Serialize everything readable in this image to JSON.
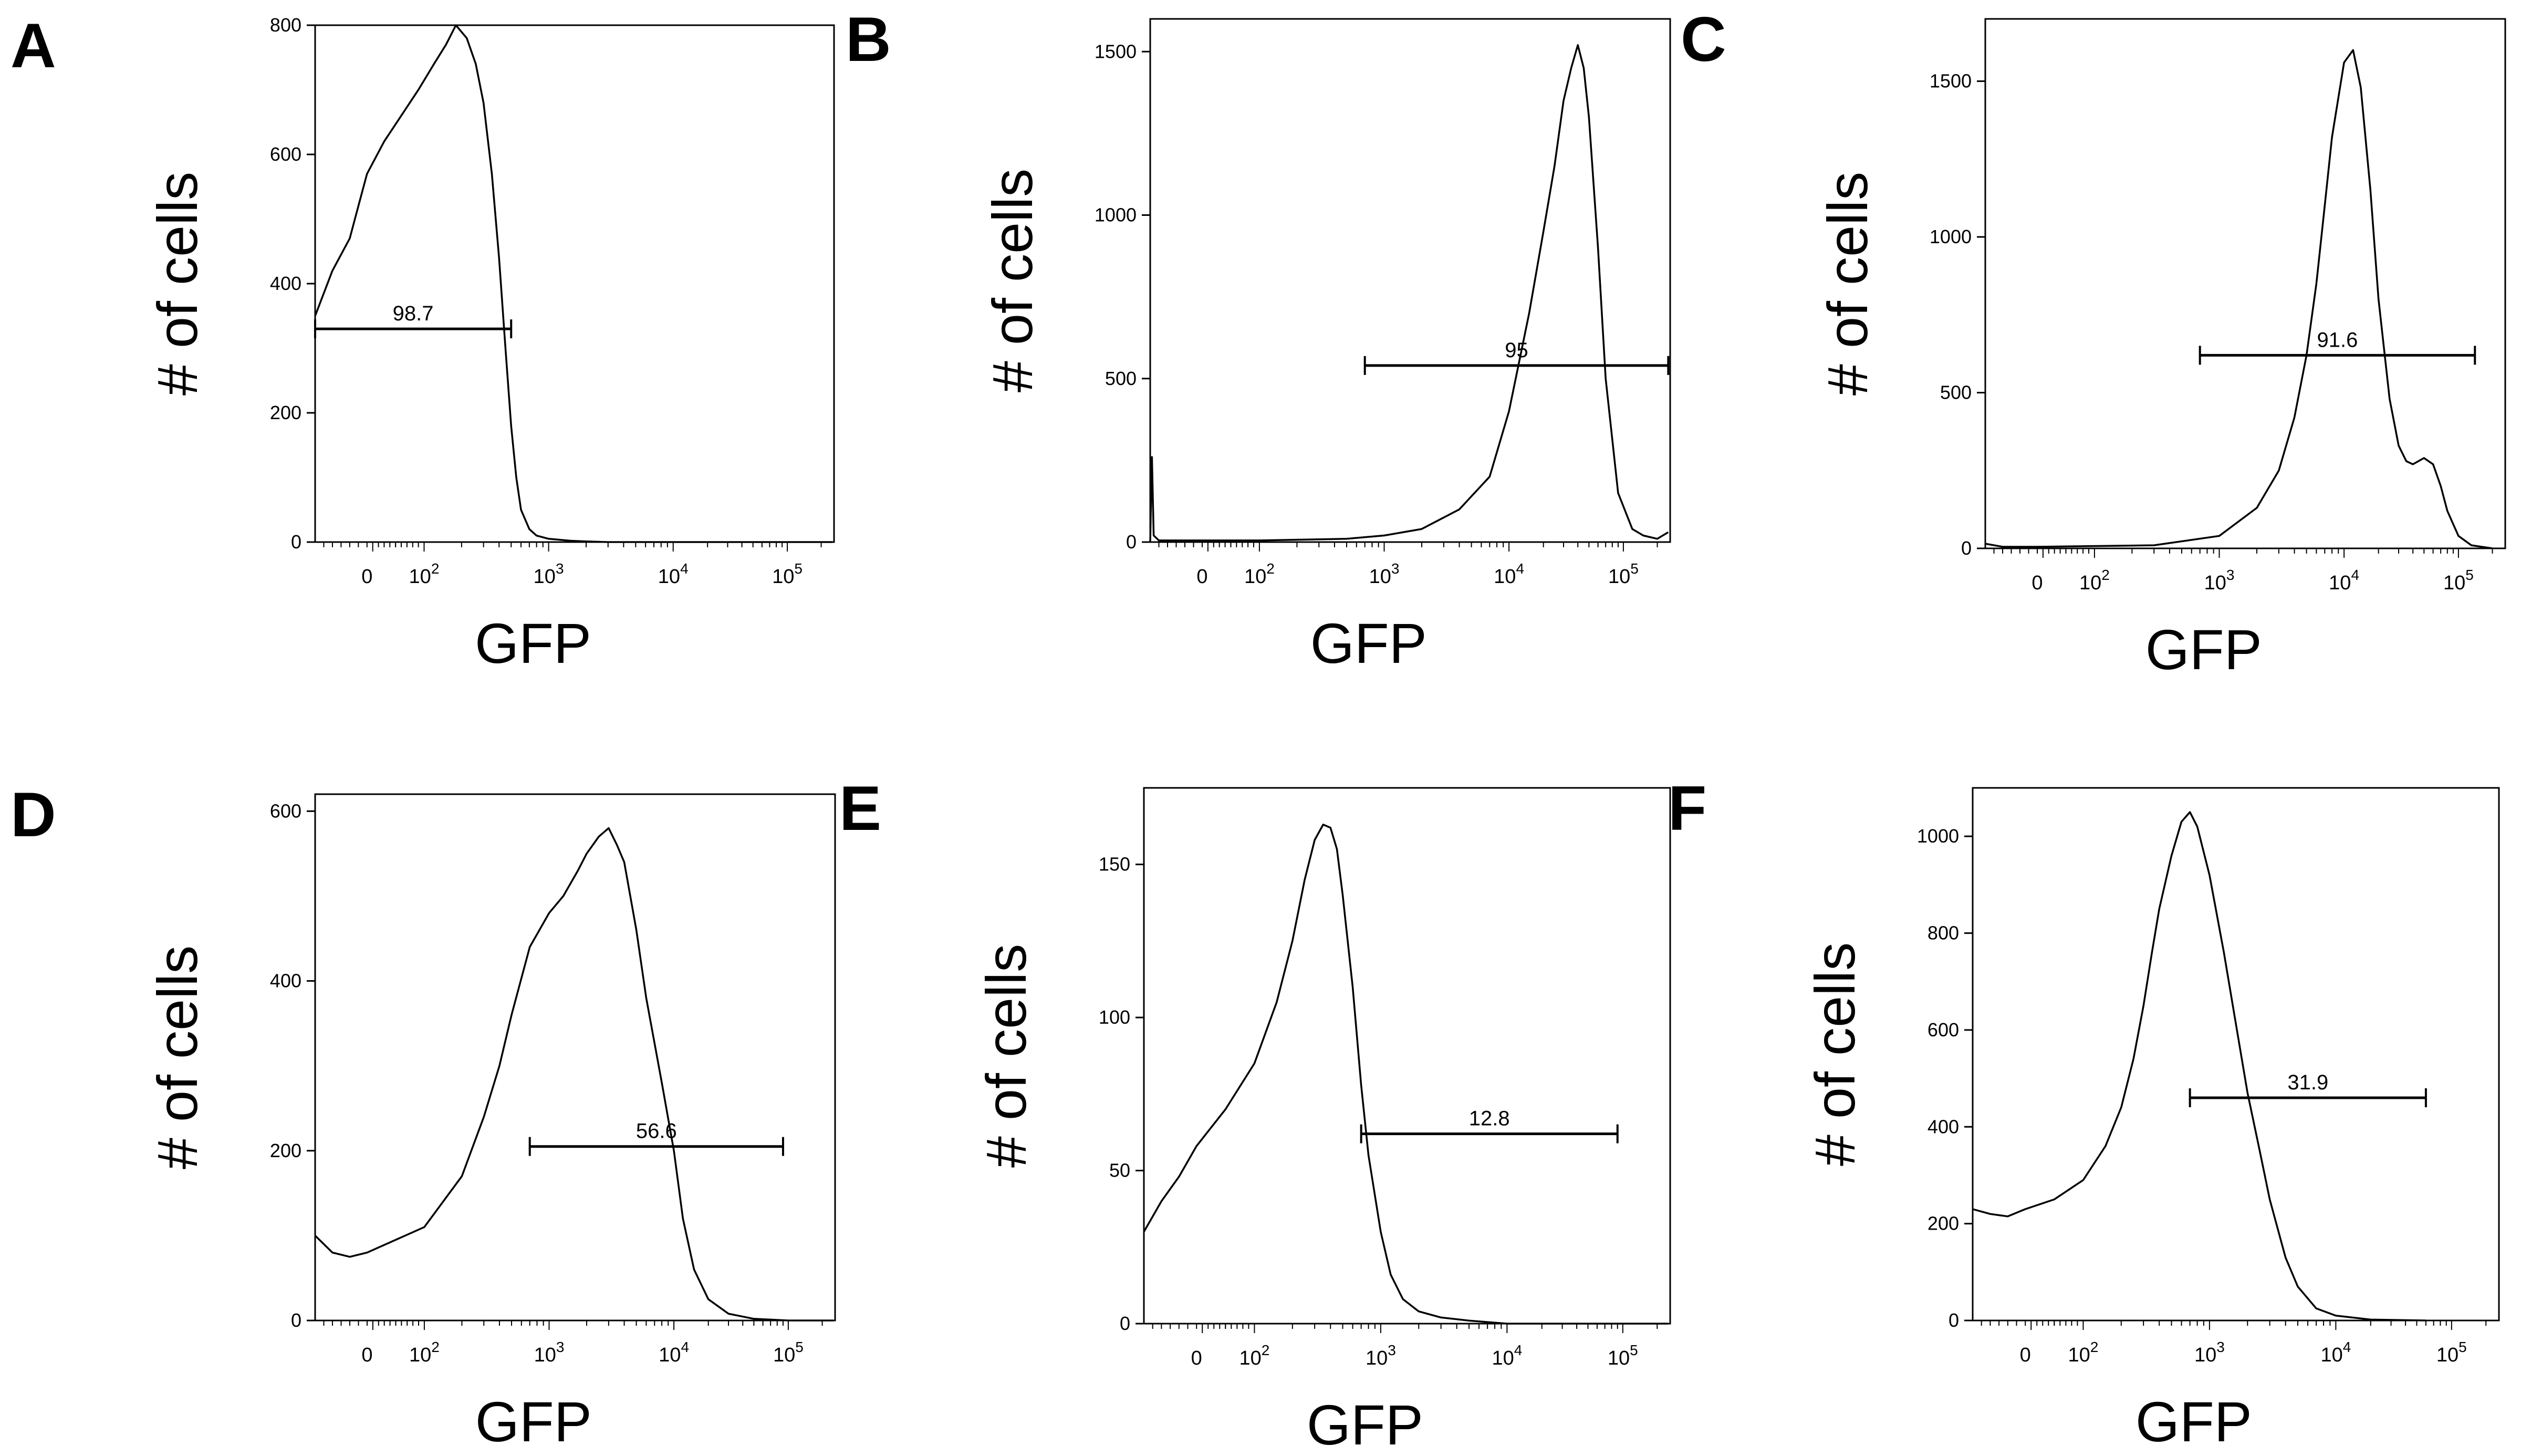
{
  "chart_data": [
    {
      "panel": "A",
      "type": "line",
      "xlabel": "GFP",
      "ylabel": "# of cells",
      "xscale": "biexponential",
      "ylim": [
        0,
        800
      ],
      "yticks": [
        0,
        200,
        400,
        600,
        800
      ],
      "xtick_labels": [
        "0",
        "10^2",
        "10^3",
        "10^4",
        "10^5"
      ],
      "gate": {
        "label": "98.7",
        "x_range": [
          -300,
          500
        ],
        "y": 330
      },
      "series": [
        {
          "x": [
            -300,
            -200,
            -100,
            -50,
            0,
            30,
            60,
            90,
            120,
            150,
            180,
            220,
            260,
            300,
            350,
            400,
            450,
            500,
            550,
            600,
            700,
            800,
            1000,
            1500,
            2000,
            3000,
            10000,
            100000,
            250000
          ],
          "y": [
            350,
            420,
            470,
            520,
            570,
            620,
            660,
            700,
            740,
            770,
            800,
            780,
            740,
            680,
            570,
            440,
            300,
            180,
            100,
            50,
            20,
            10,
            5,
            2,
            1,
            0,
            0,
            0,
            0
          ]
        }
      ]
    },
    {
      "panel": "B",
      "type": "line",
      "xlabel": "GFP",
      "ylabel": "# of cells",
      "xscale": "biexponential",
      "ylim": [
        0,
        1600
      ],
      "yticks": [
        0,
        500,
        1000,
        1500
      ],
      "xtick_labels": [
        "0",
        "10^2",
        "10^3",
        "10^4",
        "10^5"
      ],
      "gate": {
        "label": "95",
        "x_range": [
          700,
          250000
        ],
        "y": 540
      },
      "series": [
        {
          "x": [
            -300,
            -290,
            -280,
            -250,
            0,
            100,
            500,
            1000,
            2000,
            4000,
            7000,
            10000,
            15000,
            20000,
            25000,
            30000,
            35000,
            40000,
            45000,
            50000,
            60000,
            70000,
            90000,
            120000,
            150000,
            200000,
            250000
          ],
          "y": [
            0,
            260,
            20,
            5,
            5,
            5,
            10,
            20,
            40,
            100,
            200,
            400,
            700,
            950,
            1150,
            1350,
            1450,
            1520,
            1450,
            1300,
            900,
            500,
            150,
            40,
            20,
            10,
            30
          ]
        }
      ]
    },
    {
      "panel": "C",
      "type": "line",
      "xlabel": "GFP",
      "ylabel": "# of cells",
      "xscale": "biexponential",
      "ylim": [
        0,
        1700
      ],
      "yticks": [
        0,
        500,
        1000,
        1500
      ],
      "xtick_labels": [
        "0",
        "10^2",
        "10^3",
        "10^4",
        "10^5"
      ],
      "gate": {
        "label": "91.6",
        "x_range": [
          700,
          140000
        ],
        "y": 620
      },
      "series": [
        {
          "x": [
            -300,
            -200,
            0,
            300,
            1000,
            2000,
            3000,
            4000,
            5000,
            6000,
            7000,
            8000,
            10000,
            12000,
            14000,
            17000,
            20000,
            25000,
            30000,
            35000,
            40000,
            50000,
            60000,
            70000,
            80000,
            100000,
            130000,
            200000
          ],
          "y": [
            15,
            5,
            5,
            10,
            40,
            130,
            250,
            420,
            620,
            850,
            1100,
            1320,
            1560,
            1600,
            1480,
            1150,
            800,
            480,
            330,
            280,
            270,
            290,
            270,
            200,
            120,
            40,
            10,
            0
          ]
        }
      ]
    },
    {
      "panel": "D",
      "type": "line",
      "xlabel": "GFP",
      "ylabel": "# of cells",
      "xscale": "biexponential",
      "ylim": [
        0,
        620
      ],
      "yticks": [
        0,
        200,
        400,
        600
      ],
      "xtick_labels": [
        "0",
        "10^2",
        "10^3",
        "10^4",
        "10^5"
      ],
      "gate": {
        "label": "56.6",
        "x_range": [
          700,
          90000
        ],
        "y": 205
      },
      "series": [
        {
          "x": [
            -300,
            -200,
            -100,
            0,
            100,
            200,
            300,
            400,
            500,
            700,
            1000,
            1300,
            1700,
            2000,
            2500,
            3000,
            3500,
            4000,
            5000,
            6000,
            8000,
            10000,
            12000,
            15000,
            20000,
            30000,
            50000,
            100000,
            250000
          ],
          "y": [
            100,
            80,
            75,
            80,
            110,
            170,
            240,
            300,
            360,
            440,
            480,
            500,
            530,
            550,
            570,
            580,
            560,
            540,
            460,
            380,
            280,
            200,
            120,
            60,
            25,
            8,
            2,
            0,
            0
          ]
        }
      ]
    },
    {
      "panel": "E",
      "type": "line",
      "xlabel": "GFP",
      "ylabel": "# of cells",
      "xscale": "biexponential",
      "ylim": [
        0,
        175
      ],
      "yticks": [
        0,
        50,
        100,
        150
      ],
      "xtick_labels": [
        "0",
        "10^2",
        "10^3",
        "10^4",
        "10^5"
      ],
      "gate": {
        "label": "12.8",
        "x_range": [
          700,
          90000
        ],
        "y": 62
      },
      "series": [
        {
          "x": [
            -300,
            -200,
            -100,
            0,
            50,
            100,
            150,
            200,
            250,
            300,
            350,
            400,
            450,
            500,
            600,
            700,
            800,
            1000,
            1200,
            1500,
            2000,
            3000,
            5000,
            10000,
            100000,
            250000
          ],
          "y": [
            30,
            40,
            48,
            58,
            70,
            85,
            105,
            125,
            145,
            158,
            163,
            162,
            155,
            140,
            110,
            78,
            55,
            30,
            16,
            8,
            4,
            2,
            1,
            0,
            0,
            0
          ]
        }
      ]
    },
    {
      "panel": "F",
      "type": "line",
      "xlabel": "GFP",
      "ylabel": "# of cells",
      "xscale": "biexponential",
      "ylim": [
        0,
        1100
      ],
      "yticks": [
        0,
        200,
        400,
        600,
        800,
        1000
      ],
      "xtick_labels": [
        "0",
        "10^2",
        "10^3",
        "10^4",
        "10^5"
      ],
      "gate": {
        "label": "31.9",
        "x_range": [
          700,
          60000
        ],
        "y": 460
      },
      "series": [
        {
          "x": [
            -300,
            -200,
            -100,
            0,
            50,
            100,
            150,
            200,
            250,
            300,
            350,
            400,
            500,
            600,
            700,
            800,
            1000,
            1300,
            1600,
            2000,
            2500,
            3000,
            4000,
            5000,
            7000,
            10000,
            20000,
            60000
          ],
          "y": [
            230,
            220,
            215,
            230,
            250,
            290,
            360,
            440,
            540,
            650,
            760,
            850,
            960,
            1030,
            1050,
            1020,
            920,
            760,
            620,
            470,
            350,
            250,
            130,
            70,
            25,
            10,
            2,
            0
          ]
        }
      ]
    }
  ]
}
